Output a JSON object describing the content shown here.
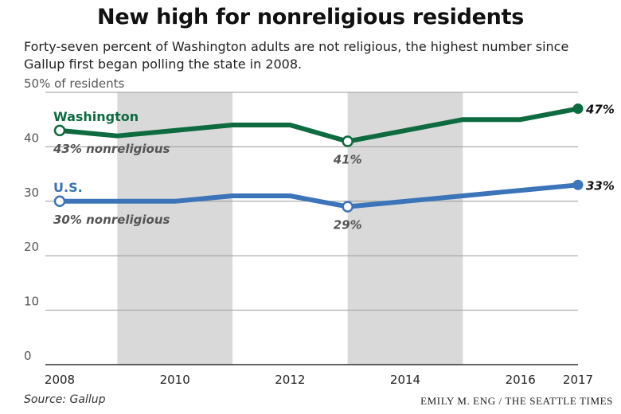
{
  "header": {
    "title": "New high for nonreligious residents",
    "subtitle": "Forty-seven percent of Washington adults are not religious, the highest number since Gallup first began polling the state in 2008."
  },
  "footer": {
    "source": "Source: Gallup",
    "credit": "EMILY M. ENG / THE SEATTLE TIMES"
  },
  "chart_data": {
    "type": "line",
    "title": "New high for nonreligious residents",
    "x": [
      2008,
      2009,
      2010,
      2011,
      2012,
      2013,
      2014,
      2015,
      2016,
      2017
    ],
    "xticks": [
      2008,
      2010,
      2012,
      2014,
      2016,
      2017
    ],
    "xlim": [
      2008,
      2017
    ],
    "ylim": [
      0,
      50
    ],
    "yticks": [
      {
        "value": 0,
        "label": "0"
      },
      {
        "value": 10,
        "label": "10"
      },
      {
        "value": 20,
        "label": "20"
      },
      {
        "value": 30,
        "label": "30"
      },
      {
        "value": 40,
        "label": "40"
      },
      {
        "value": 50,
        "label": "50% of residents"
      }
    ],
    "grid": true,
    "shaded_bands": [
      [
        2009,
        2011
      ],
      [
        2013,
        2015
      ]
    ],
    "series": [
      {
        "name": "Washington",
        "color": "#0d6b3f",
        "values": [
          43,
          42,
          43,
          44,
          44,
          41,
          43,
          45,
          45,
          47
        ],
        "labels": [
          {
            "x": 2008,
            "text": "43% nonreligious"
          },
          {
            "x": 2013,
            "text": "41%"
          },
          {
            "x": 2017,
            "text": "47%"
          }
        ]
      },
      {
        "name": "U.S.",
        "color": "#3b74b8",
        "values": [
          30,
          30,
          30,
          31,
          31,
          29,
          30,
          31,
          32,
          33
        ],
        "labels": [
          {
            "x": 2008,
            "text": "30% nonreligious"
          },
          {
            "x": 2013,
            "text": "29%"
          },
          {
            "x": 2017,
            "text": "33%"
          }
        ]
      }
    ]
  }
}
